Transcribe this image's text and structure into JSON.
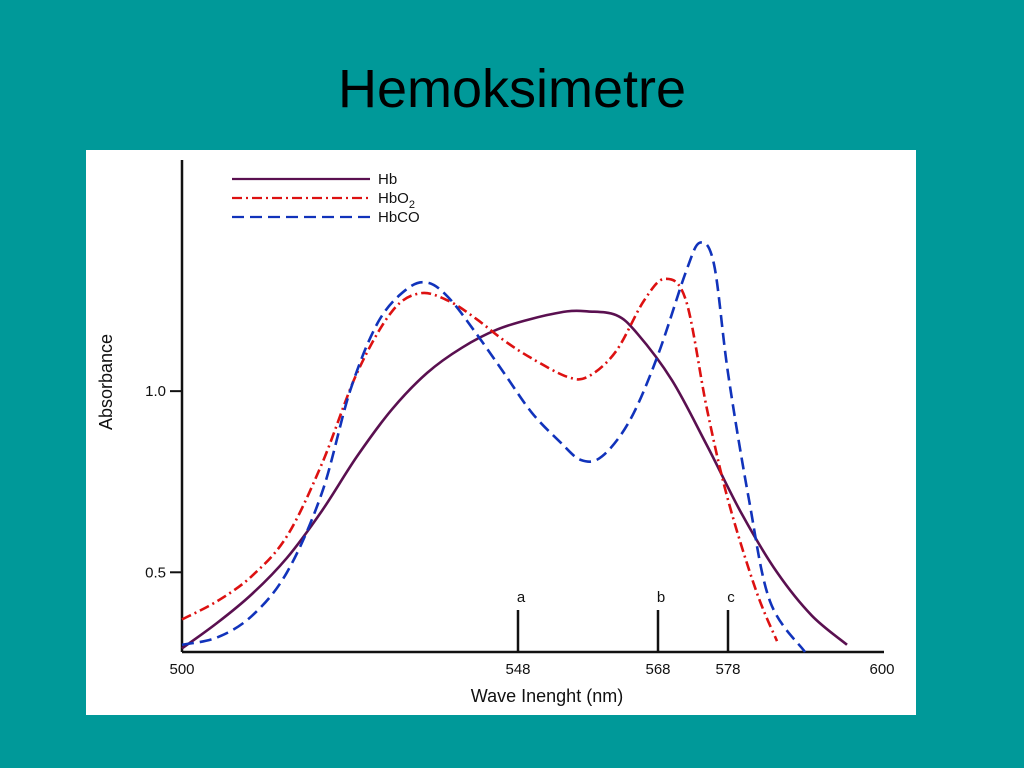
{
  "slide": {
    "title": "Hemoksimetre"
  },
  "chart_data": {
    "type": "line",
    "xlabel": "Wave Inenght (nm)",
    "ylabel": "Absorbance",
    "xlim": [
      500,
      600
    ],
    "ylim": [
      0.28,
      1.5
    ],
    "x_ticks": [
      {
        "value": 500,
        "label": "500"
      },
      {
        "value": 548,
        "label": "548"
      },
      {
        "value": 568,
        "label": "568"
      },
      {
        "value": 578,
        "label": "578"
      },
      {
        "value": 600,
        "label": "600"
      }
    ],
    "y_ticks": [
      {
        "value": 0.5,
        "label": "0.5"
      },
      {
        "value": 1.0,
        "label": "1.0"
      }
    ],
    "legend": {
      "position": "top-left",
      "entries": [
        {
          "series": "Hb",
          "label_main": "Hb",
          "label_sub": ""
        },
        {
          "series": "HbO2",
          "label_main": "HbO",
          "label_sub": "2"
        },
        {
          "series": "HbCO",
          "label_main": "HbCO",
          "label_sub": ""
        }
      ]
    },
    "markers": [
      {
        "label": "a",
        "x": 548
      },
      {
        "label": "b",
        "x": 568
      },
      {
        "label": "c",
        "x": 578
      }
    ],
    "series": [
      {
        "name": "Hb",
        "color": "#5a1050",
        "style": "solid",
        "points": [
          [
            500,
            0.29
          ],
          [
            505,
            0.36
          ],
          [
            510,
            0.44
          ],
          [
            515,
            0.54
          ],
          [
            520,
            0.67
          ],
          [
            525,
            0.82
          ],
          [
            530,
            0.95
          ],
          [
            535,
            1.05
          ],
          [
            540,
            1.12
          ],
          [
            545,
            1.17
          ],
          [
            550,
            1.2
          ],
          [
            555,
            1.22
          ],
          [
            558,
            1.22
          ],
          [
            562,
            1.21
          ],
          [
            565,
            1.16
          ],
          [
            570,
            1.03
          ],
          [
            575,
            0.85
          ],
          [
            580,
            0.66
          ],
          [
            585,
            0.5
          ],
          [
            590,
            0.38
          ],
          [
            595,
            0.3
          ]
        ]
      },
      {
        "name": "HbO2",
        "color": "#dd1111",
        "style": "dash-dot",
        "points": [
          [
            500,
            0.37
          ],
          [
            505,
            0.42
          ],
          [
            510,
            0.49
          ],
          [
            515,
            0.6
          ],
          [
            520,
            0.8
          ],
          [
            525,
            1.05
          ],
          [
            530,
            1.22
          ],
          [
            534,
            1.27
          ],
          [
            538,
            1.25
          ],
          [
            542,
            1.2
          ],
          [
            546,
            1.14
          ],
          [
            550,
            1.09
          ],
          [
            555,
            1.04
          ],
          [
            558,
            1.04
          ],
          [
            562,
            1.11
          ],
          [
            566,
            1.25
          ],
          [
            569,
            1.31
          ],
          [
            572,
            1.25
          ],
          [
            575,
            0.95
          ],
          [
            578,
            0.7
          ],
          [
            582,
            0.45
          ],
          [
            585,
            0.31
          ]
        ]
      },
      {
        "name": "HbCO",
        "color": "#1133bb",
        "style": "dashed",
        "points": [
          [
            500,
            0.3
          ],
          [
            505,
            0.32
          ],
          [
            510,
            0.38
          ],
          [
            515,
            0.5
          ],
          [
            520,
            0.72
          ],
          [
            524,
            1.0
          ],
          [
            528,
            1.19
          ],
          [
            532,
            1.28
          ],
          [
            535,
            1.3
          ],
          [
            538,
            1.26
          ],
          [
            542,
            1.16
          ],
          [
            546,
            1.05
          ],
          [
            550,
            0.94
          ],
          [
            554,
            0.86
          ],
          [
            557,
            0.81
          ],
          [
            560,
            0.82
          ],
          [
            564,
            0.92
          ],
          [
            568,
            1.1
          ],
          [
            572,
            1.33
          ],
          [
            574,
            1.41
          ],
          [
            576,
            1.35
          ],
          [
            578,
            1.05
          ],
          [
            581,
            0.7
          ],
          [
            584,
            0.42
          ],
          [
            589,
            0.28
          ]
        ]
      }
    ]
  }
}
